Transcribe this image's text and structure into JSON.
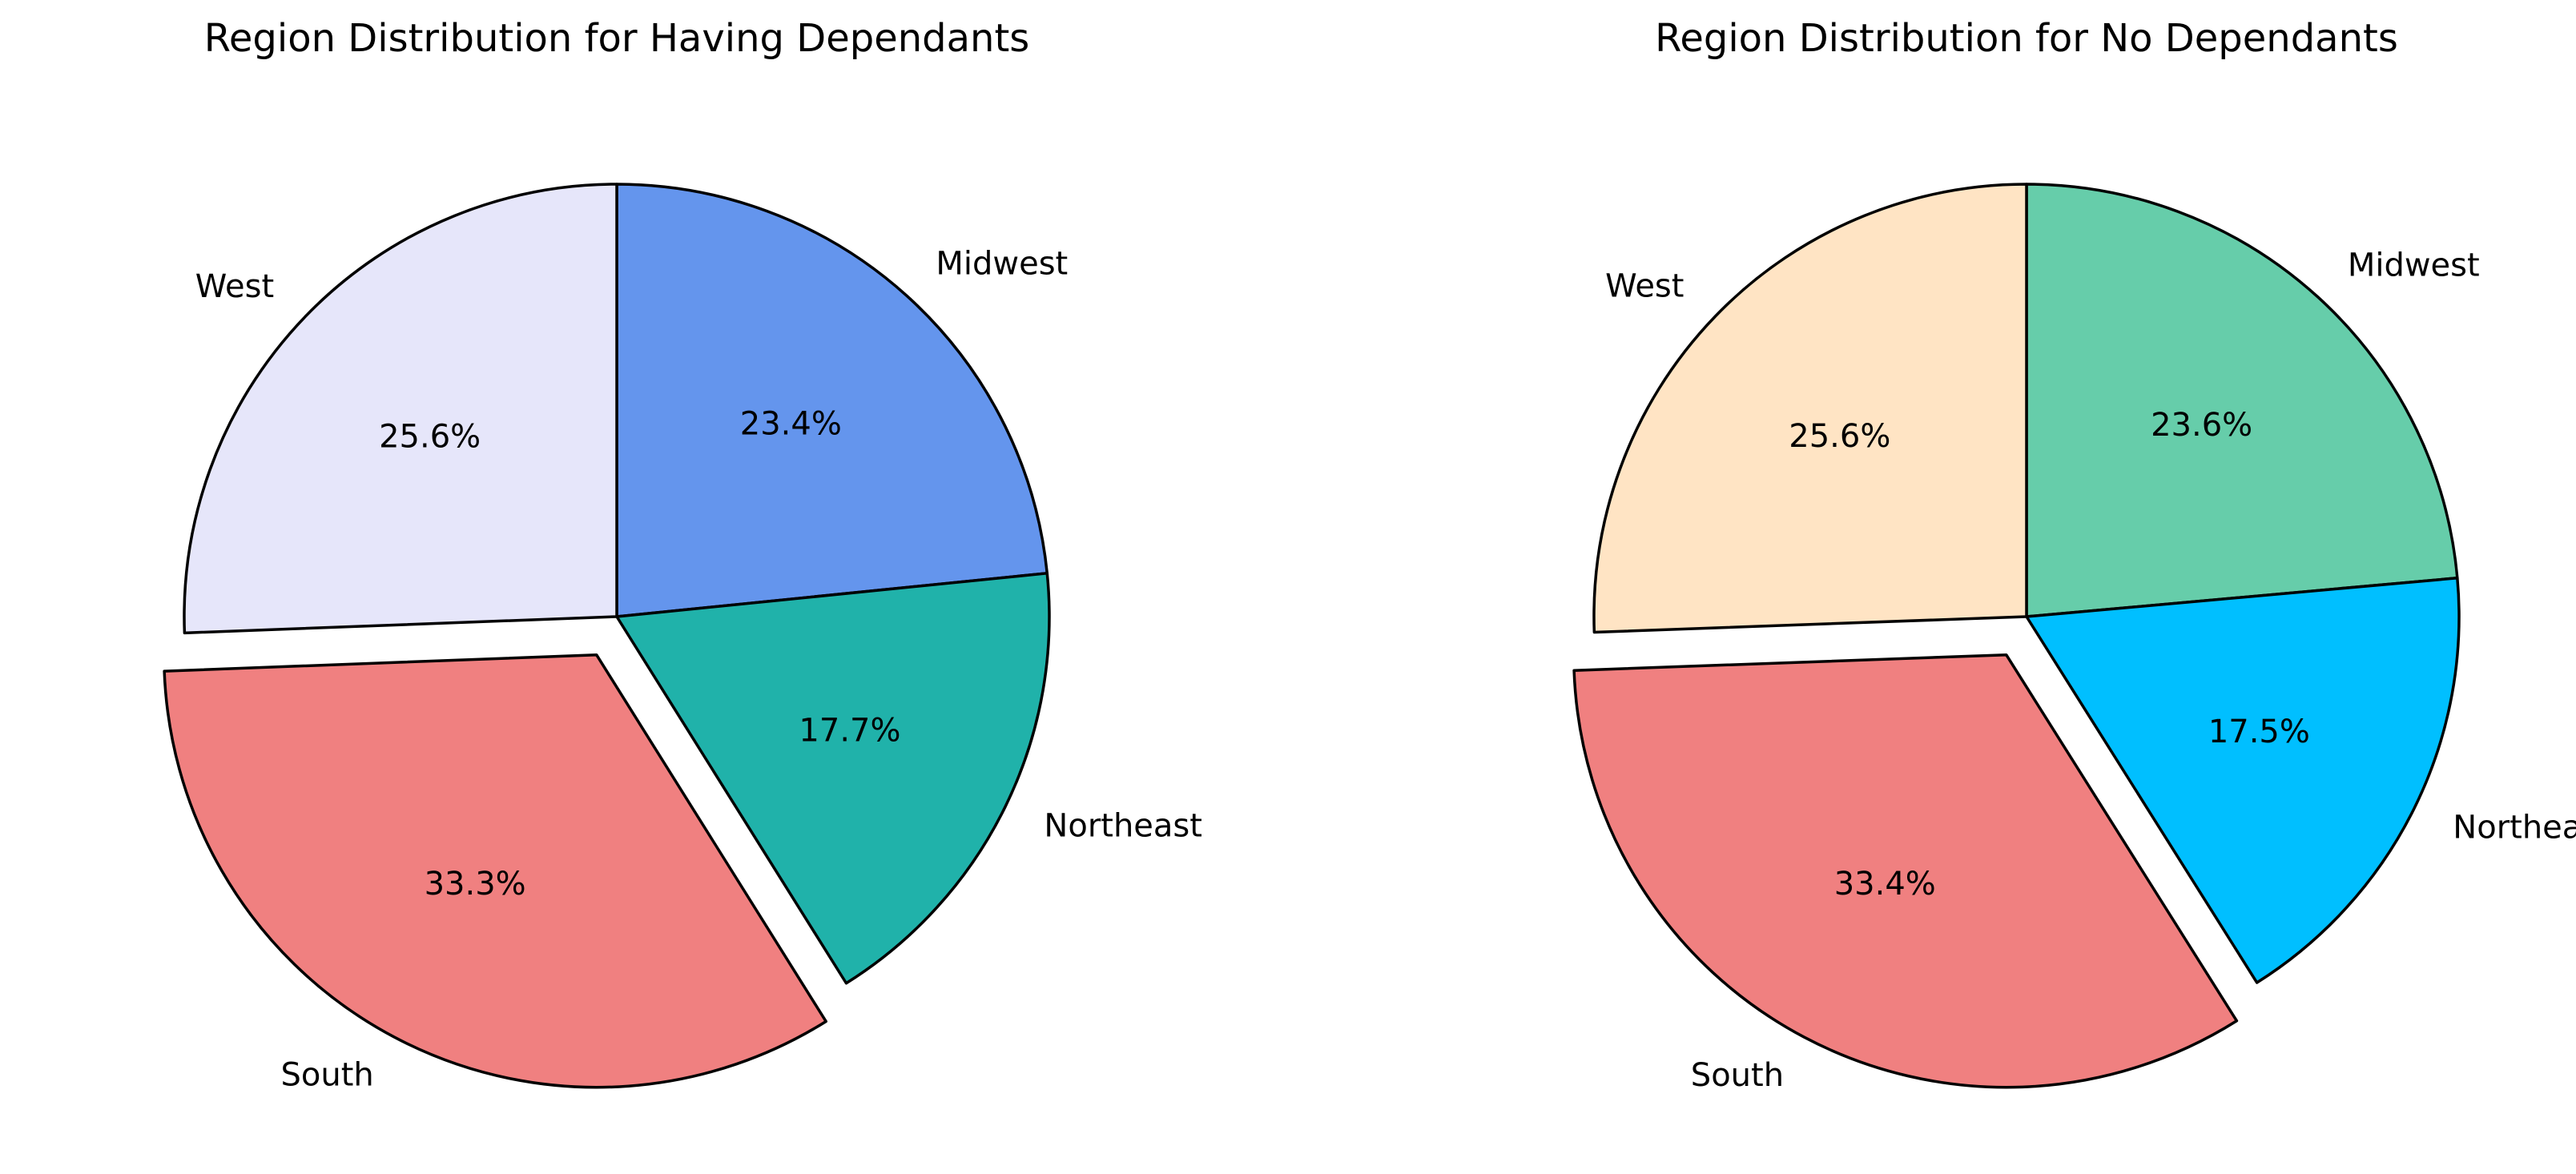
{
  "chart_data": [
    {
      "type": "pie",
      "title": "Region Distribution for Having Dependants",
      "start_angle_deg": 90,
      "direction": "clockwise",
      "slices": [
        {
          "label": "Midwest",
          "value": 23.4,
          "pct_label": "23.4%",
          "color": "#6495ED",
          "explode": false
        },
        {
          "label": "Northeast",
          "value": 17.7,
          "pct_label": "17.7%",
          "color": "#20B2AA",
          "explode": false
        },
        {
          "label": "South",
          "value": 33.3,
          "pct_label": "33.3%",
          "color": "#F08080",
          "explode": true
        },
        {
          "label": "West",
          "value": 25.6,
          "pct_label": "25.6%",
          "color": "#E6E6FA",
          "explode": false
        }
      ]
    },
    {
      "type": "pie",
      "title": "Region Distribution for No Dependants",
      "start_angle_deg": 90,
      "direction": "clockwise",
      "slices": [
        {
          "label": "Midwest",
          "value": 23.6,
          "pct_label": "23.6%",
          "color": "#66CDAA",
          "explode": false
        },
        {
          "label": "Northeast",
          "value": 17.5,
          "pct_label": "17.5%",
          "color": "#00BFFF",
          "explode": false
        },
        {
          "label": "South",
          "value": 33.4,
          "pct_label": "33.4%",
          "color": "#F08080",
          "explode": true
        },
        {
          "label": "West",
          "value": 25.6,
          "pct_label": "25.6%",
          "color": "#FFE4C4",
          "explode": false
        }
      ]
    }
  ]
}
